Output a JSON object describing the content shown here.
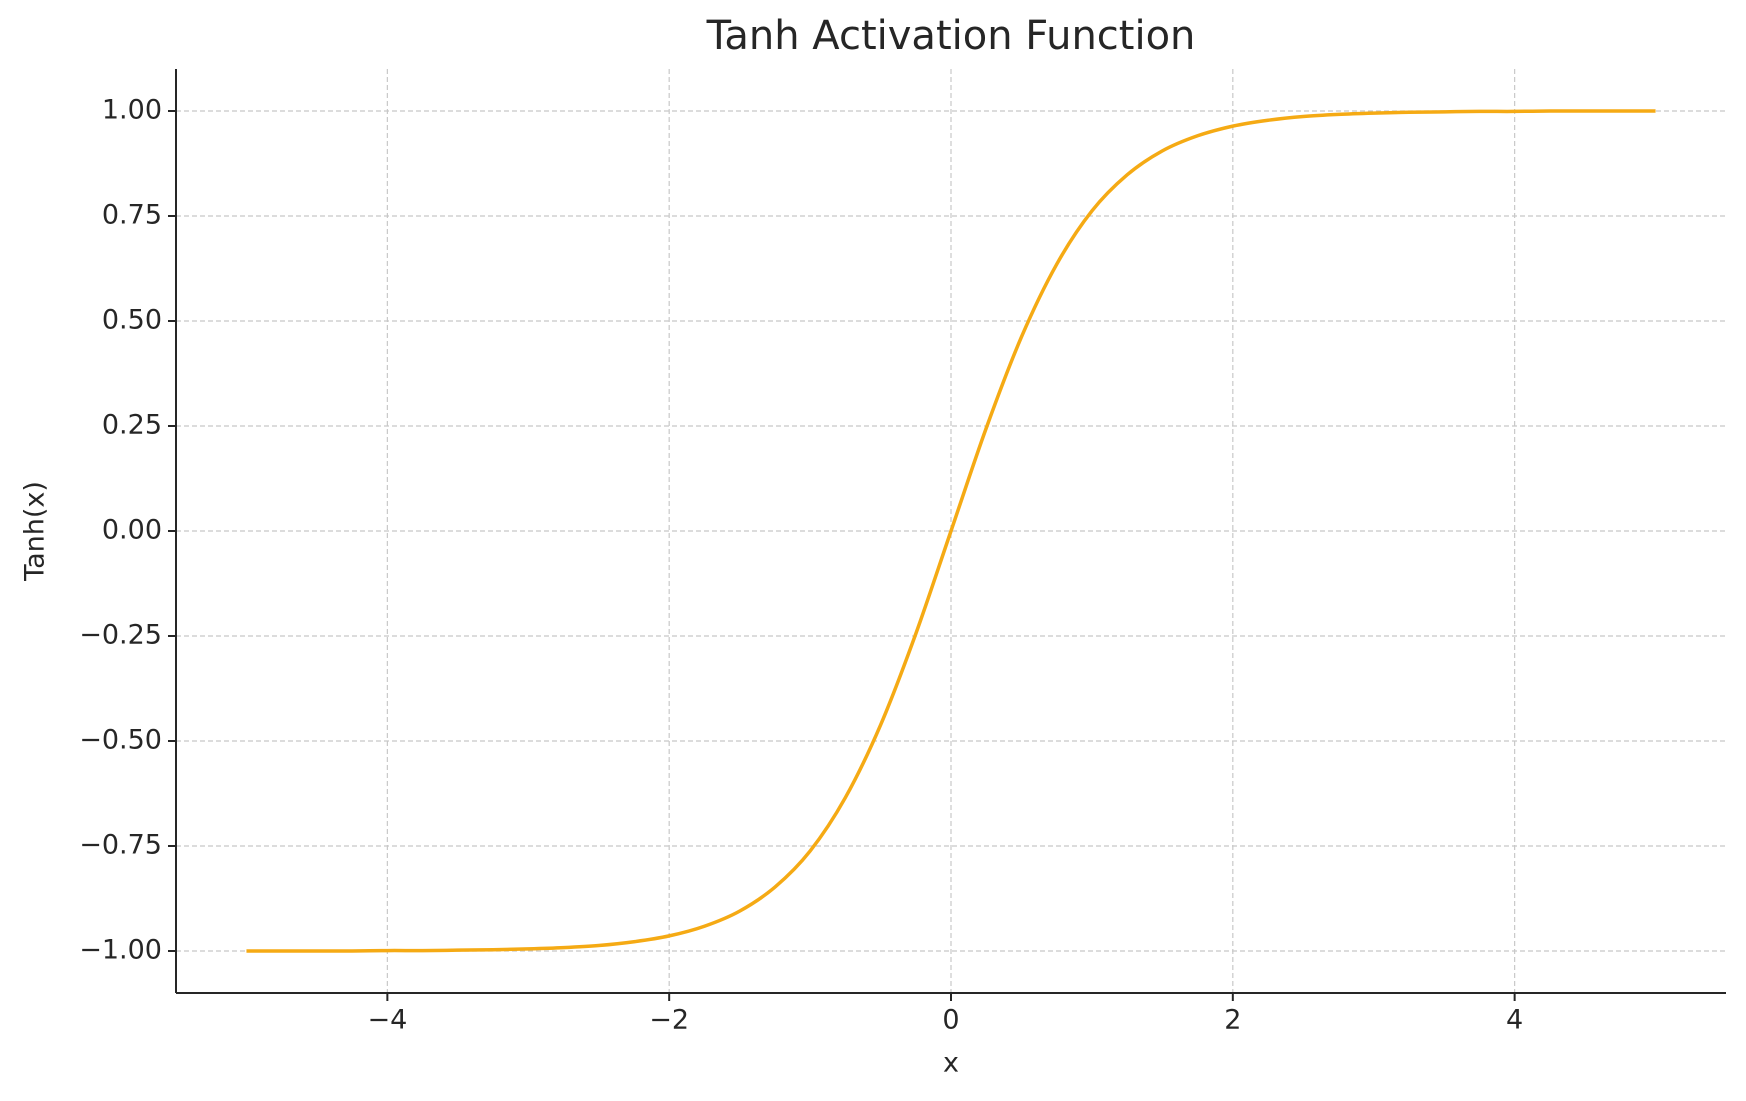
{
  "chart_data": {
    "type": "line",
    "title": "Tanh Activation Function",
    "x_label": "x",
    "y_label": "Tanh(x)",
    "x": [
      -5,
      -4.75,
      -4.5,
      -4.25,
      -4,
      -3.75,
      -3.5,
      -3.25,
      -3,
      -2.75,
      -2.5,
      -2.25,
      -2,
      -1.75,
      -1.5,
      -1.25,
      -1,
      -0.75,
      -0.5,
      -0.25,
      0,
      0.25,
      0.5,
      0.75,
      1,
      1.25,
      1.5,
      1.75,
      2,
      2.25,
      2.5,
      2.75,
      3,
      3.25,
      3.5,
      3.75,
      4,
      4.25,
      4.5,
      4.75,
      5
    ],
    "series": [
      {
        "color": "#f5aa14",
        "values": [
          -1.0,
          -1.0,
          -1.0,
          -1.0,
          -0.999,
          -0.999,
          -0.998,
          -0.997,
          -0.995,
          -0.992,
          -0.987,
          -0.978,
          -0.964,
          -0.941,
          -0.905,
          -0.848,
          -0.762,
          -0.635,
          -0.462,
          -0.245,
          0,
          0.245,
          0.462,
          0.635,
          0.762,
          0.848,
          0.905,
          0.941,
          0.964,
          0.978,
          0.987,
          0.992,
          0.995,
          0.997,
          0.998,
          0.999,
          0.999,
          1.0,
          1.0,
          1.0,
          1.0
        ]
      }
    ],
    "xlim": [
      -5.5,
      5.5
    ],
    "ylim": [
      -1.1,
      1.1
    ],
    "xticks": [
      {
        "value": -4,
        "label": "−4"
      },
      {
        "value": -2,
        "label": "−2"
      },
      0,
      2,
      4
    ],
    "yticks": [
      {
        "value": -1,
        "label": "−1.00"
      },
      {
        "value": -0.75,
        "label": "−0.75"
      },
      {
        "value": -0.5,
        "label": "−0.50"
      },
      {
        "value": -0.25,
        "label": "−0.25"
      },
      {
        "value": 0,
        "label": "0.00"
      },
      {
        "value": 0.25,
        "label": "0.25"
      },
      {
        "value": 0.5,
        "label": "0.50"
      },
      {
        "value": 0.75,
        "label": "0.75"
      },
      {
        "value": 1,
        "label": "1.00"
      }
    ],
    "grid": true
  }
}
